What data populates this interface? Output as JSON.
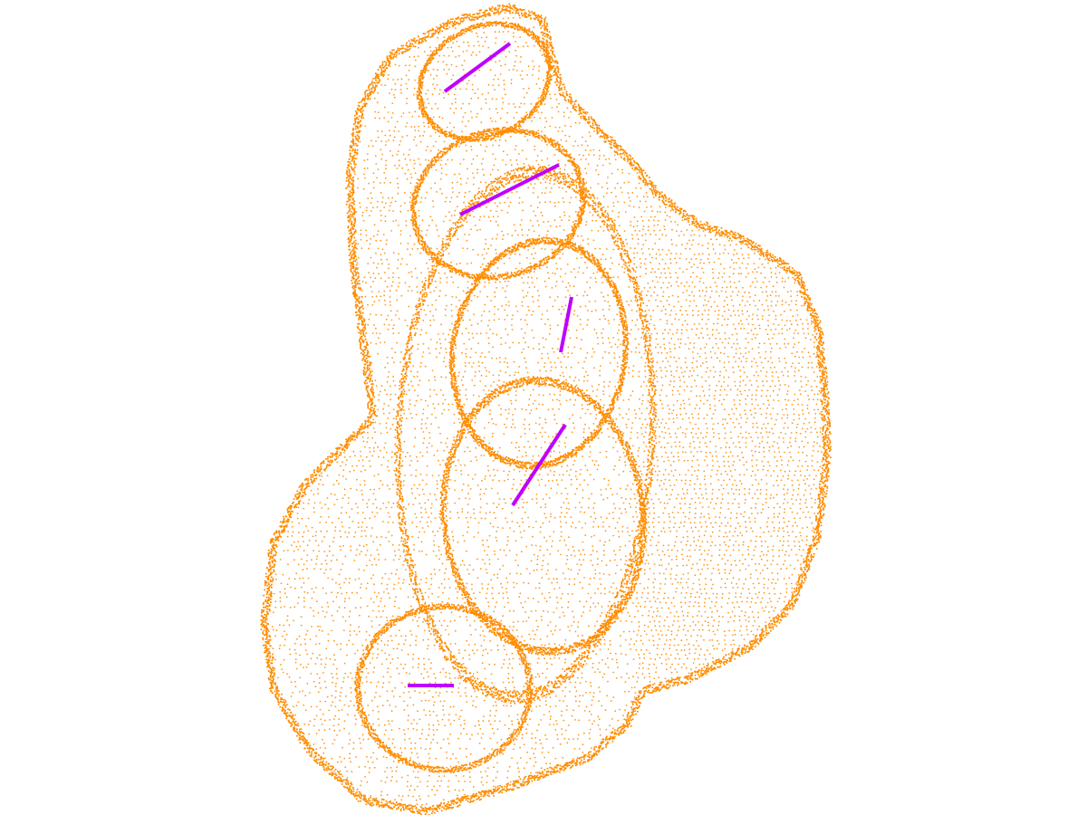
{
  "scene": {
    "background_color": "#ffffff",
    "point_color": "#ff8c00",
    "segment_color": "#bf00ff",
    "point_cloud_icon": "point-cloud",
    "segment_count": 5
  }
}
